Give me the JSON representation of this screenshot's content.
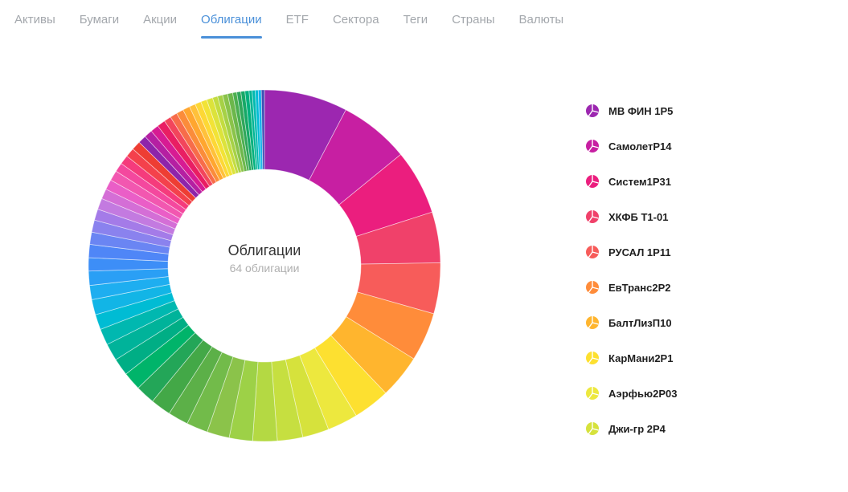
{
  "tabs": [
    {
      "label": "Активы",
      "active": false
    },
    {
      "label": "Бумаги",
      "active": false
    },
    {
      "label": "Акции",
      "active": false
    },
    {
      "label": "Облигации",
      "active": true
    },
    {
      "label": "ETF",
      "active": false
    },
    {
      "label": "Сектора",
      "active": false
    },
    {
      "label": "Теги",
      "active": false
    },
    {
      "label": "Страны",
      "active": false
    },
    {
      "label": "Валюты",
      "active": false
    }
  ],
  "accent_color": "#4a90d9",
  "chart_center": {
    "title": "Облигации",
    "subtitle": "64 облигации"
  },
  "legend_icon": "pie-icon",
  "chart_data": {
    "type": "pie",
    "donut": true,
    "title": "Облигации",
    "slices": [
      {
        "label": "МВ ФИН 1Р5",
        "value": 8.2,
        "color": "#9c27b0"
      },
      {
        "label": "СамолетР14",
        "value": 6.9,
        "color": "#c71fa2"
      },
      {
        "label": "Систем1Р31",
        "value": 6.4,
        "color": "#eb1e7e"
      },
      {
        "label": "ХКФБ Т1-01",
        "value": 5.0,
        "color": "#f0416a"
      },
      {
        "label": "РУСАЛ 1Р11",
        "value": 5.0,
        "color": "#f75c5a"
      },
      {
        "label": "ЕвТранс2Р2",
        "value": 4.8,
        "color": "#ff8c3a"
      },
      {
        "label": "БалтЛизП10",
        "value": 4.3,
        "color": "#ffb52e"
      },
      {
        "label": "КарМани2Р1",
        "value": 3.6,
        "color": "#fde030"
      },
      {
        "label": "Аэрфью2Р03",
        "value": 3.0,
        "color": "#ede83e"
      },
      {
        "label": "Джи-гр 2Р4",
        "value": 2.6,
        "color": "#d6e23c"
      },
      {
        "value": 2.5,
        "color": "#c6df40"
      },
      {
        "value": 2.4,
        "color": "#b4d943"
      },
      {
        "value": 2.3,
        "color": "#9dd147"
      },
      {
        "value": 2.2,
        "color": "#8bc34a"
      },
      {
        "value": 2.1,
        "color": "#72bb4a"
      },
      {
        "value": 2.0,
        "color": "#5cb048"
      },
      {
        "value": 2.0,
        "color": "#43a847"
      },
      {
        "value": 1.9,
        "color": "#23a658"
      },
      {
        "value": 1.8,
        "color": "#00b46a"
      },
      {
        "value": 1.7,
        "color": "#00ae85"
      },
      {
        "value": 1.7,
        "color": "#00b39a"
      },
      {
        "value": 1.6,
        "color": "#00b8b0"
      },
      {
        "value": 1.5,
        "color": "#00bcd4"
      },
      {
        "value": 1.5,
        "color": "#12b5e6"
      },
      {
        "value": 1.4,
        "color": "#1eaef0"
      },
      {
        "value": 1.4,
        "color": "#2a9ff5"
      },
      {
        "value": 1.3,
        "color": "#3d8ef7"
      },
      {
        "value": 1.3,
        "color": "#4f86f7"
      },
      {
        "value": 1.2,
        "color": "#6a85f3"
      },
      {
        "value": 1.2,
        "color": "#8a82ee"
      },
      {
        "value": 1.1,
        "color": "#a47be8"
      },
      {
        "value": 1.1,
        "color": "#c37ae0"
      },
      {
        "value": 1.0,
        "color": "#d46ed6"
      },
      {
        "value": 1.0,
        "color": "#ea5ec7"
      },
      {
        "value": 1.0,
        "color": "#f257b0"
      },
      {
        "value": 0.9,
        "color": "#f4489e"
      },
      {
        "value": 0.9,
        "color": "#f53b7c"
      },
      {
        "value": 0.9,
        "color": "#f4414c"
      },
      {
        "value": 0.9,
        "color": "#ee3d33"
      },
      {
        "value": 0.8,
        "color": "#8e24aa"
      },
      {
        "value": 0.8,
        "color": "#b51fa2"
      },
      {
        "value": 0.8,
        "color": "#d71b93"
      },
      {
        "value": 0.8,
        "color": "#e91e63"
      },
      {
        "value": 0.7,
        "color": "#f2455c"
      },
      {
        "value": 0.7,
        "color": "#f76c4a"
      },
      {
        "value": 0.7,
        "color": "#fb8c3a"
      },
      {
        "value": 0.7,
        "color": "#ffa62f"
      },
      {
        "value": 0.6,
        "color": "#ffc13a"
      },
      {
        "value": 0.6,
        "color": "#fdd835"
      },
      {
        "value": 0.6,
        "color": "#f2e336"
      },
      {
        "value": 0.6,
        "color": "#dce33b"
      },
      {
        "value": 0.5,
        "color": "#c3dc40"
      },
      {
        "value": 0.5,
        "color": "#a6d146"
      },
      {
        "value": 0.5,
        "color": "#8ac34a"
      },
      {
        "value": 0.5,
        "color": "#6cb74b"
      },
      {
        "value": 0.4,
        "color": "#4caf50"
      },
      {
        "value": 0.4,
        "color": "#2fa65a"
      },
      {
        "value": 0.4,
        "color": "#16a866"
      },
      {
        "value": 0.4,
        "color": "#00b07c"
      },
      {
        "value": 0.3,
        "color": "#00b494"
      },
      {
        "value": 0.3,
        "color": "#00b9ae"
      },
      {
        "value": 0.3,
        "color": "#00bcd4"
      },
      {
        "value": 0.3,
        "color": "#13b1ec"
      },
      {
        "value": 0.3,
        "color": "#3f51b5"
      }
    ],
    "legend": [
      "МВ ФИН 1Р5",
      "СамолетР14",
      "Систем1Р31",
      "ХКФБ Т1-01",
      "РУСАЛ 1Р11",
      "ЕвТранс2Р2",
      "БалтЛизП10",
      "КарМани2Р1",
      "Аэрфью2Р03",
      "Джи-гр 2Р4"
    ],
    "legend_placement": "right"
  }
}
